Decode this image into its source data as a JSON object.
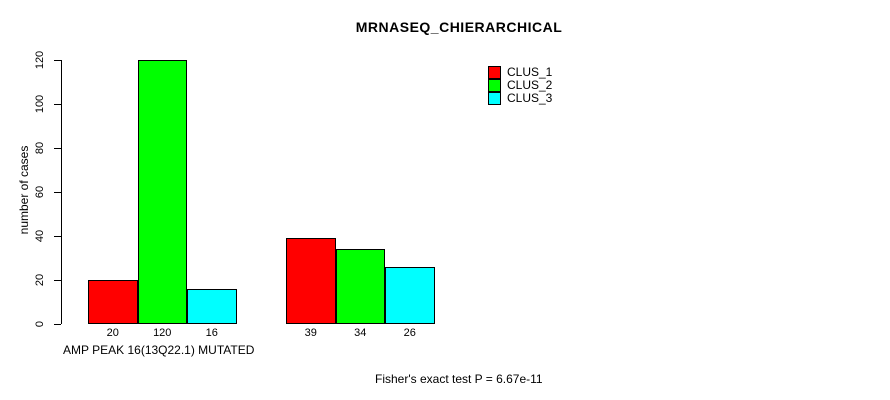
{
  "chart_data": {
    "type": "bar",
    "title": "MRNASEQ_CHIERARCHICAL",
    "ylabel": "number of cases",
    "xlabel": "AMP PEAK 16(13Q22.1) MUTATED",
    "annotation": "Fisher's exact test P = 6.67e-11",
    "categories": [
      "",
      ""
    ],
    "series": [
      {
        "name": "CLUS_1",
        "color": "#ff0000",
        "values": [
          20,
          39
        ]
      },
      {
        "name": "CLUS_2",
        "color": "#00ff00",
        "values": [
          120,
          34
        ]
      },
      {
        "name": "CLUS_3",
        "color": "#00ffff",
        "values": [
          16,
          26
        ]
      }
    ],
    "yticks": [
      0,
      20,
      40,
      60,
      80,
      100,
      120
    ],
    "ylim": [
      0,
      120
    ],
    "grid": false,
    "legend_position": "top-right",
    "bar_value_labels_shown": true,
    "bar_border_color": "#000000",
    "background_color": "#ffffff"
  }
}
